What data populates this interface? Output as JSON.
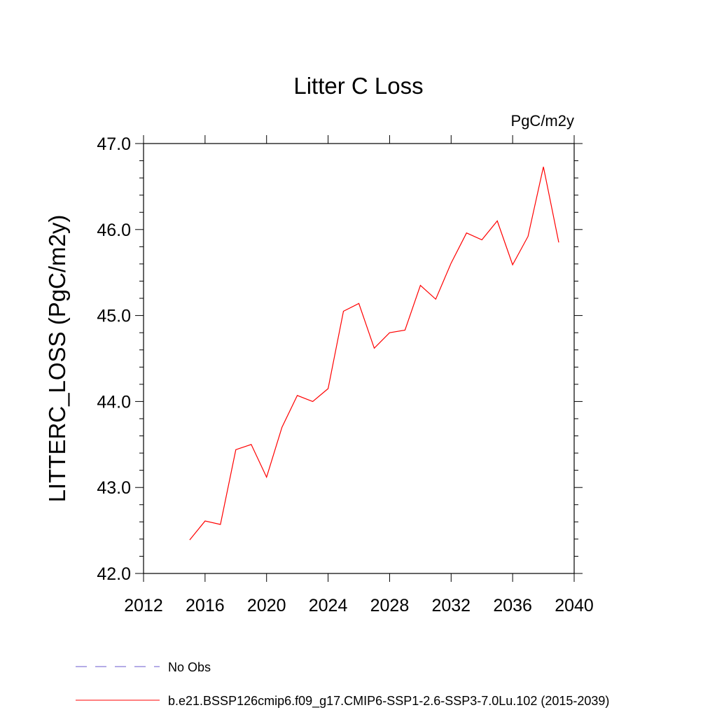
{
  "chart_data": {
    "type": "line",
    "title": "Litter C Loss",
    "units": "PgC/m2y",
    "ylabel": "LITTERC_LOSS  (PgC/m2y)",
    "xlabel": "",
    "xlim": [
      2012,
      2040
    ],
    "ylim": [
      42.0,
      47.0
    ],
    "x_ticks": [
      2012,
      2016,
      2020,
      2024,
      2028,
      2032,
      2036,
      2040
    ],
    "y_ticks": [
      "42.0",
      "43.0",
      "44.0",
      "45.0",
      "46.0",
      "47.0"
    ],
    "grid": false,
    "series": [
      {
        "name": "b.e21.BSSP126cmip6.f09_g17.CMIP6-SSP1-2.6-SSP3-7.0Lu.102 (2015-2039)",
        "color": "#ff0000",
        "x": [
          2015,
          2016,
          2017,
          2018,
          2019,
          2020,
          2021,
          2022,
          2023,
          2024,
          2025,
          2026,
          2027,
          2028,
          2029,
          2030,
          2031,
          2032,
          2033,
          2034,
          2035,
          2036,
          2037,
          2038,
          2039
        ],
        "values": [
          42.39,
          42.61,
          42.57,
          43.44,
          43.5,
          43.12,
          43.7,
          44.07,
          44.0,
          44.15,
          45.05,
          45.14,
          44.62,
          44.8,
          44.83,
          45.35,
          45.19,
          45.61,
          45.96,
          45.88,
          46.1,
          45.59,
          45.92,
          46.73,
          45.85
        ]
      }
    ],
    "legend": [
      {
        "label": "No Obs",
        "color": "#6a5acd",
        "style": "dashed"
      },
      {
        "label": "b.e21.BSSP126cmip6.f09_g17.CMIP6-SSP1-2.6-SSP3-7.0Lu.102 (2015-2039)",
        "color": "#ff0000",
        "style": "solid"
      }
    ]
  }
}
